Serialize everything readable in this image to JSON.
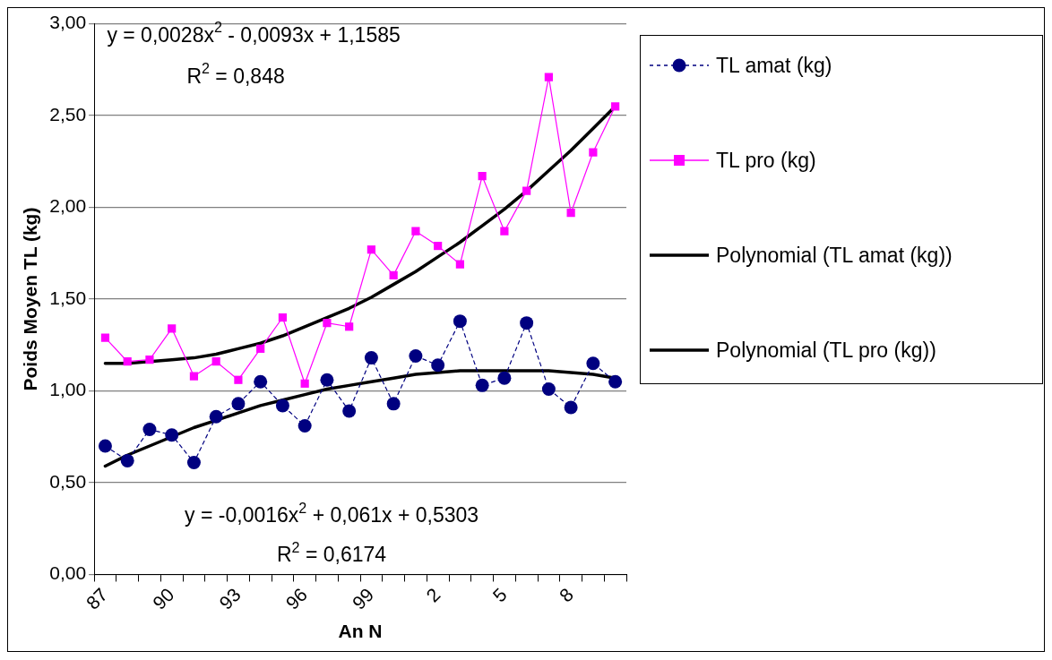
{
  "chart_data": {
    "type": "line",
    "xlabel": "An N",
    "ylabel": "Poids Moyen TL (kg)",
    "categories": [
      "87",
      null,
      null,
      "90",
      null,
      null,
      "93",
      null,
      null,
      "96",
      null,
      null,
      "99",
      null,
      null,
      "2",
      null,
      null,
      "5",
      null,
      null,
      "8",
      null,
      null
    ],
    "ylim": [
      0,
      3
    ],
    "yticks": [
      {
        "value": 0,
        "label": "0,00"
      },
      {
        "value": 0.5,
        "label": "0,50"
      },
      {
        "value": 1,
        "label": "1,00"
      },
      {
        "value": 1.5,
        "label": "1,50"
      },
      {
        "value": 2,
        "label": "2,00"
      },
      {
        "value": 2.5,
        "label": "2,50"
      },
      {
        "value": 3,
        "label": "3,00"
      }
    ],
    "grid": "y",
    "legend": "right",
    "series": [
      {
        "name": "TL amat (kg)",
        "color": "#000080",
        "marker": "circle",
        "line_style": "dashed",
        "values": [
          0.7,
          0.62,
          0.79,
          0.76,
          0.61,
          0.86,
          0.93,
          1.05,
          0.92,
          0.81,
          1.06,
          0.89,
          1.18,
          0.93,
          1.19,
          1.14,
          1.38,
          1.03,
          1.07,
          1.37,
          1.01,
          0.91,
          1.15,
          1.05
        ]
      },
      {
        "name": "TL pro (kg)",
        "color": "#ff00ff",
        "marker": "square",
        "line_style": "solid",
        "values": [
          1.29,
          1.16,
          1.17,
          1.34,
          1.08,
          1.16,
          1.06,
          1.23,
          1.4,
          1.04,
          1.37,
          1.35,
          1.77,
          1.63,
          1.87,
          1.79,
          1.69,
          2.17,
          1.87,
          2.09,
          2.71,
          1.97,
          2.3,
          2.55
        ]
      },
      {
        "name": "Polynomial (TL amat (kg))",
        "color": "#000000",
        "marker": "none",
        "line_style": "solid",
        "values": [
          0.59,
          0.65,
          0.7,
          0.75,
          0.8,
          0.84,
          0.88,
          0.92,
          0.95,
          0.98,
          1.01,
          1.03,
          1.05,
          1.07,
          1.09,
          1.1,
          1.11,
          1.11,
          1.11,
          1.11,
          1.11,
          1.1,
          1.09,
          1.07
        ]
      },
      {
        "name": "Polynomial (TL pro (kg))",
        "color": "#000000",
        "marker": "none",
        "line_style": "solid",
        "values": [
          1.15,
          1.15,
          1.16,
          1.17,
          1.18,
          1.2,
          1.23,
          1.26,
          1.3,
          1.35,
          1.4,
          1.45,
          1.51,
          1.58,
          1.65,
          1.73,
          1.81,
          1.9,
          1.99,
          2.09,
          2.2,
          2.31,
          2.43,
          2.55
        ]
      }
    ],
    "annotations": [
      "y = 0,0028x$^{2}$ - 0,0093x + 1,1585",
      "R$^{2}$ = 0,848",
      "y = -0,0016x$^{2}$ + 0,061x + 0,5303",
      "R$^{2}$ = 0,6174"
    ]
  }
}
